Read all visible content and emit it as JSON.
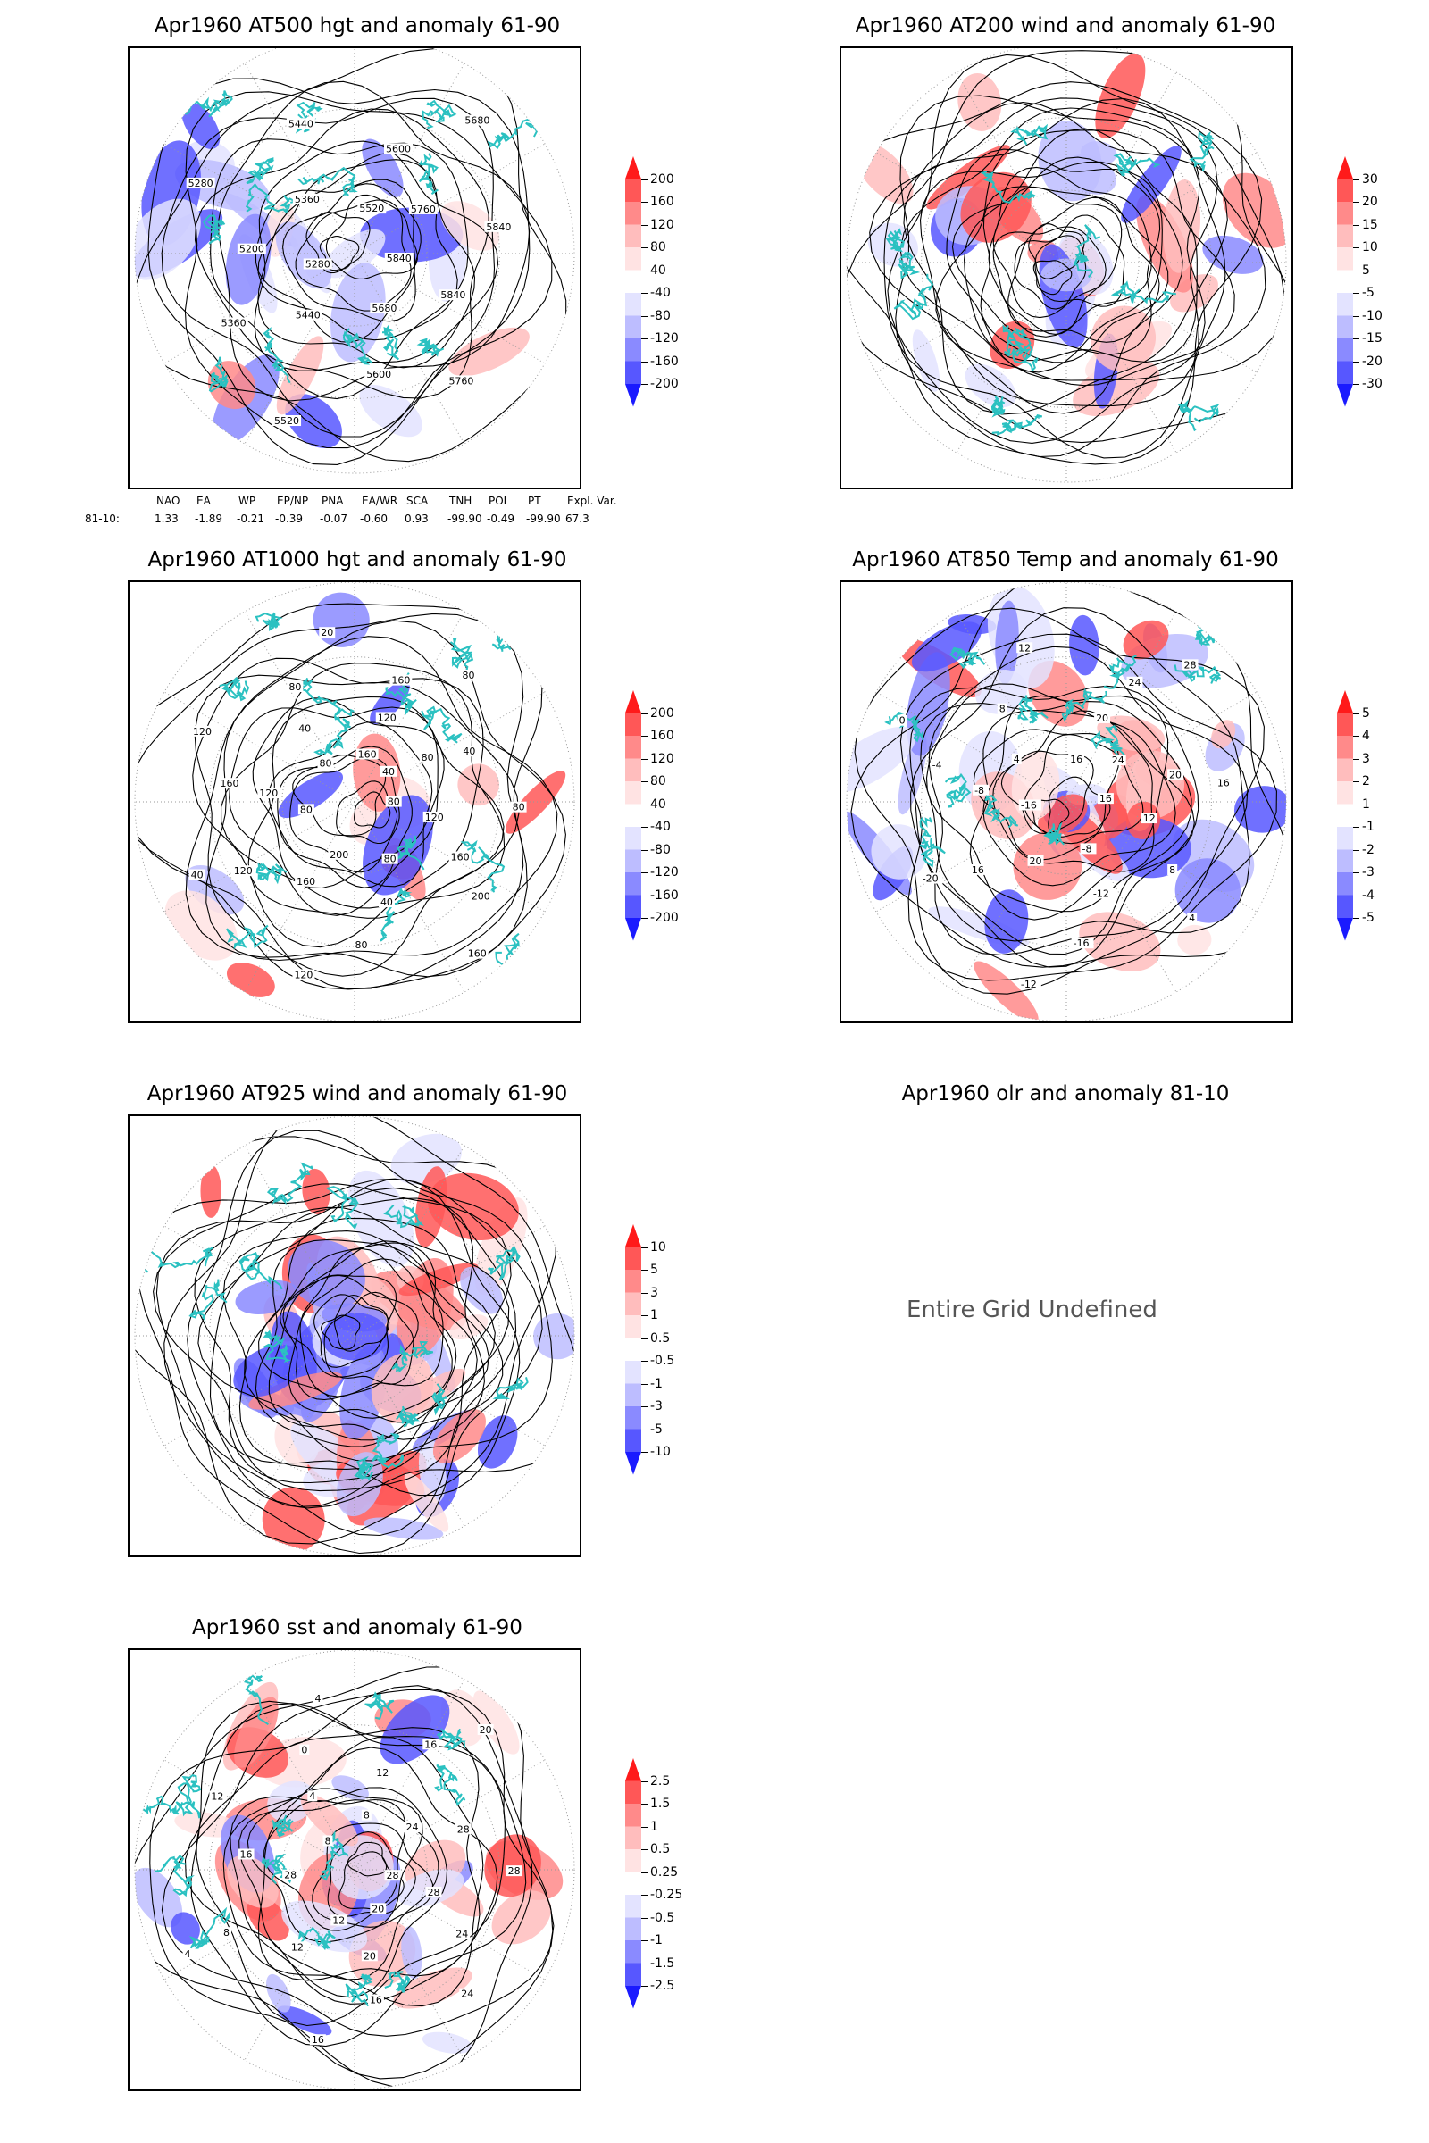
{
  "colors": {
    "coast": "#2bc1c1",
    "contour": "#000000",
    "grid": "#999999"
  },
  "panels": [
    {
      "id": "p1",
      "title": "Apr1960 AT500 hgt and anomaly 61-90",
      "contours": [
        "5840",
        "5840",
        "5760",
        "5680",
        "5600",
        "5520",
        "5440",
        "5360",
        "5280",
        "5200",
        "5280",
        "5360",
        "5440",
        "5520",
        "5600",
        "5680",
        "5760",
        "5840"
      ],
      "colorbar": {
        "labels": [
          "200",
          "160",
          "120",
          "80",
          "40",
          "-40",
          "-80",
          "-120",
          "-160",
          "-200"
        ],
        "colors": [
          "#ff1a1a",
          "#ff5757",
          "#ff8a8a",
          "#ffbdbd",
          "#ffe3e3",
          "#ffffff",
          "#e3e3ff",
          "#bdbdff",
          "#8a8aff",
          "#5757ff",
          "#1a1aff"
        ]
      }
    },
    {
      "id": "p2",
      "title": "Apr1960 AT200 wind and anomaly 61-90",
      "contours": [],
      "colorbar": {
        "labels": [
          "30",
          "20",
          "15",
          "10",
          "5",
          "-5",
          "-10",
          "-15",
          "-20",
          "-30"
        ],
        "colors": [
          "#ff1a1a",
          "#ff5757",
          "#ff8a8a",
          "#ffbdbd",
          "#ffe3e3",
          "#ffffff",
          "#e3e3ff",
          "#bdbdff",
          "#8a8aff",
          "#5757ff",
          "#1a1aff"
        ]
      }
    },
    {
      "id": "p3",
      "title": "Apr1960 AT1000 hgt and anomaly 61-90",
      "contours": [
        "80",
        "120",
        "160",
        "200",
        "160",
        "80",
        "40",
        "80",
        "120",
        "200",
        "160",
        "120",
        "40",
        "80",
        "120",
        "160",
        "120",
        "80",
        "40",
        "80",
        "20",
        "160",
        "120",
        "160",
        "80",
        "40",
        "80",
        "40",
        "80"
      ],
      "colorbar": {
        "labels": [
          "200",
          "160",
          "120",
          "80",
          "40",
          "-40",
          "-80",
          "-120",
          "-160",
          "-200"
        ],
        "colors": [
          "#ff1a1a",
          "#ff5757",
          "#ff8a8a",
          "#ffbdbd",
          "#ffe3e3",
          "#ffffff",
          "#e3e3ff",
          "#bdbdff",
          "#8a8aff",
          "#5757ff",
          "#1a1aff"
        ]
      }
    },
    {
      "id": "p4",
      "title": "Apr1960 AT850 Temp and anomaly 61-90",
      "contours": [
        "16",
        "12",
        "8",
        "4",
        "-8",
        "-12",
        "-16",
        "-12",
        "20",
        "16",
        "-20",
        "-16",
        "-8",
        "-4",
        "0",
        "4",
        "8",
        "12",
        "16",
        "20",
        "24",
        "28",
        "24",
        "20",
        "16"
      ],
      "colorbar": {
        "labels": [
          "5",
          "4",
          "3",
          "2",
          "1",
          "-1",
          "-2",
          "-3",
          "-4",
          "-5"
        ],
        "colors": [
          "#ff1a1a",
          "#ff5757",
          "#ff8a8a",
          "#ffbdbd",
          "#ffe3e3",
          "#ffffff",
          "#e3e3ff",
          "#bdbdff",
          "#8a8aff",
          "#5757ff",
          "#1a1aff"
        ]
      }
    },
    {
      "id": "p5",
      "title": "Apr1960 AT925 wind and anomaly 61-90",
      "contours": [],
      "colorbar": {
        "labels": [
          "10",
          "5",
          "3",
          "1",
          "0.5",
          "-0.5",
          "-1",
          "-3",
          "-5",
          "-10"
        ],
        "colors": [
          "#ff1a1a",
          "#ff5757",
          "#ff8a8a",
          "#ffbdbd",
          "#ffe3e3",
          "#ffffff",
          "#e3e3ff",
          "#bdbdff",
          "#8a8aff",
          "#5757ff",
          "#1a1aff"
        ]
      }
    },
    {
      "id": "p6",
      "title": "Apr1960 olr and anomaly 81-10",
      "message": "Entire Grid Undefined"
    },
    {
      "id": "p7",
      "title": "Apr1960 sst and anomaly 61-90",
      "contours": [
        "28",
        "28",
        "24",
        "24",
        "20",
        "20",
        "16",
        "16",
        "12",
        "12",
        "8",
        "4",
        "28",
        "16",
        "12",
        "8",
        "4",
        "0",
        "4",
        "8",
        "12",
        "16",
        "20",
        "24",
        "28",
        "28"
      ],
      "colorbar": {
        "labels": [
          "2.5",
          "1.5",
          "1",
          "0.5",
          "0.25",
          "-0.25",
          "-0.5",
          "-1",
          "-1.5",
          "-2.5"
        ],
        "colors": [
          "#ff1a1a",
          "#ff5757",
          "#ff8a8a",
          "#ffbdbd",
          "#ffe3e3",
          "#ffffff",
          "#e3e3ff",
          "#bdbdff",
          "#8a8aff",
          "#5757ff",
          "#1a1aff"
        ]
      }
    }
  ],
  "teleconnection": {
    "headers": [
      "NAO",
      "EA",
      "WP",
      "EP/NP",
      "PNA",
      "EA/WR",
      "SCA",
      "TNH",
      "POL",
      "PT",
      "Expl. Var."
    ],
    "row_label": "81-10:",
    "values": [
      "1.33",
      "-1.89",
      "-0.21",
      "-0.39",
      "-0.07",
      "-0.60",
      "0.93",
      "-99.90",
      "-0.49",
      "-99.90",
      "67.3"
    ]
  },
  "chart_data": [
    {
      "type": "heatmap",
      "title": "Apr1960 AT500 hgt and anomaly 61-90",
      "contour_labels": [
        5840,
        5760,
        5680,
        5600,
        5520,
        5440,
        5360,
        5280,
        5200
      ],
      "colorbar_levels": [
        200,
        160,
        120,
        80,
        40,
        -40,
        -80,
        -120,
        -160,
        -200
      ]
    },
    {
      "type": "heatmap",
      "title": "Apr1960 AT200 wind and anomaly 61-90",
      "colorbar_levels": [
        30,
        20,
        15,
        10,
        5,
        -5,
        -10,
        -15,
        -20,
        -30
      ]
    },
    {
      "type": "heatmap",
      "title": "Apr1960 AT1000 hgt and anomaly 61-90",
      "contour_labels": [
        200,
        160,
        120,
        80,
        40,
        20
      ],
      "colorbar_levels": [
        200,
        160,
        120,
        80,
        40,
        -40,
        -80,
        -120,
        -160,
        -200
      ]
    },
    {
      "type": "heatmap",
      "title": "Apr1960 AT850 Temp and anomaly 61-90",
      "contour_labels": [
        28,
        24,
        20,
        16,
        12,
        8,
        4,
        0,
        -4,
        -8,
        -12,
        -16,
        -20
      ],
      "colorbar_levels": [
        5,
        4,
        3,
        2,
        1,
        -1,
        -2,
        -3,
        -4,
        -5
      ]
    },
    {
      "type": "heatmap",
      "title": "Apr1960 AT925 wind and anomaly 61-90",
      "colorbar_levels": [
        10,
        5,
        3,
        1,
        0.5,
        -0.5,
        -1,
        -3,
        -5,
        -10
      ]
    },
    {
      "type": "heatmap",
      "title": "Apr1960 olr and anomaly 81-10"
    },
    {
      "type": "heatmap",
      "title": "Apr1960 sst and anomaly 61-90",
      "contour_labels": [
        28,
        24,
        20,
        16,
        12,
        8,
        4,
        0
      ],
      "colorbar_levels": [
        2.5,
        1.5,
        1,
        0.5,
        0.25,
        -0.25,
        -0.5,
        -1,
        -1.5,
        -2.5
      ]
    }
  ]
}
